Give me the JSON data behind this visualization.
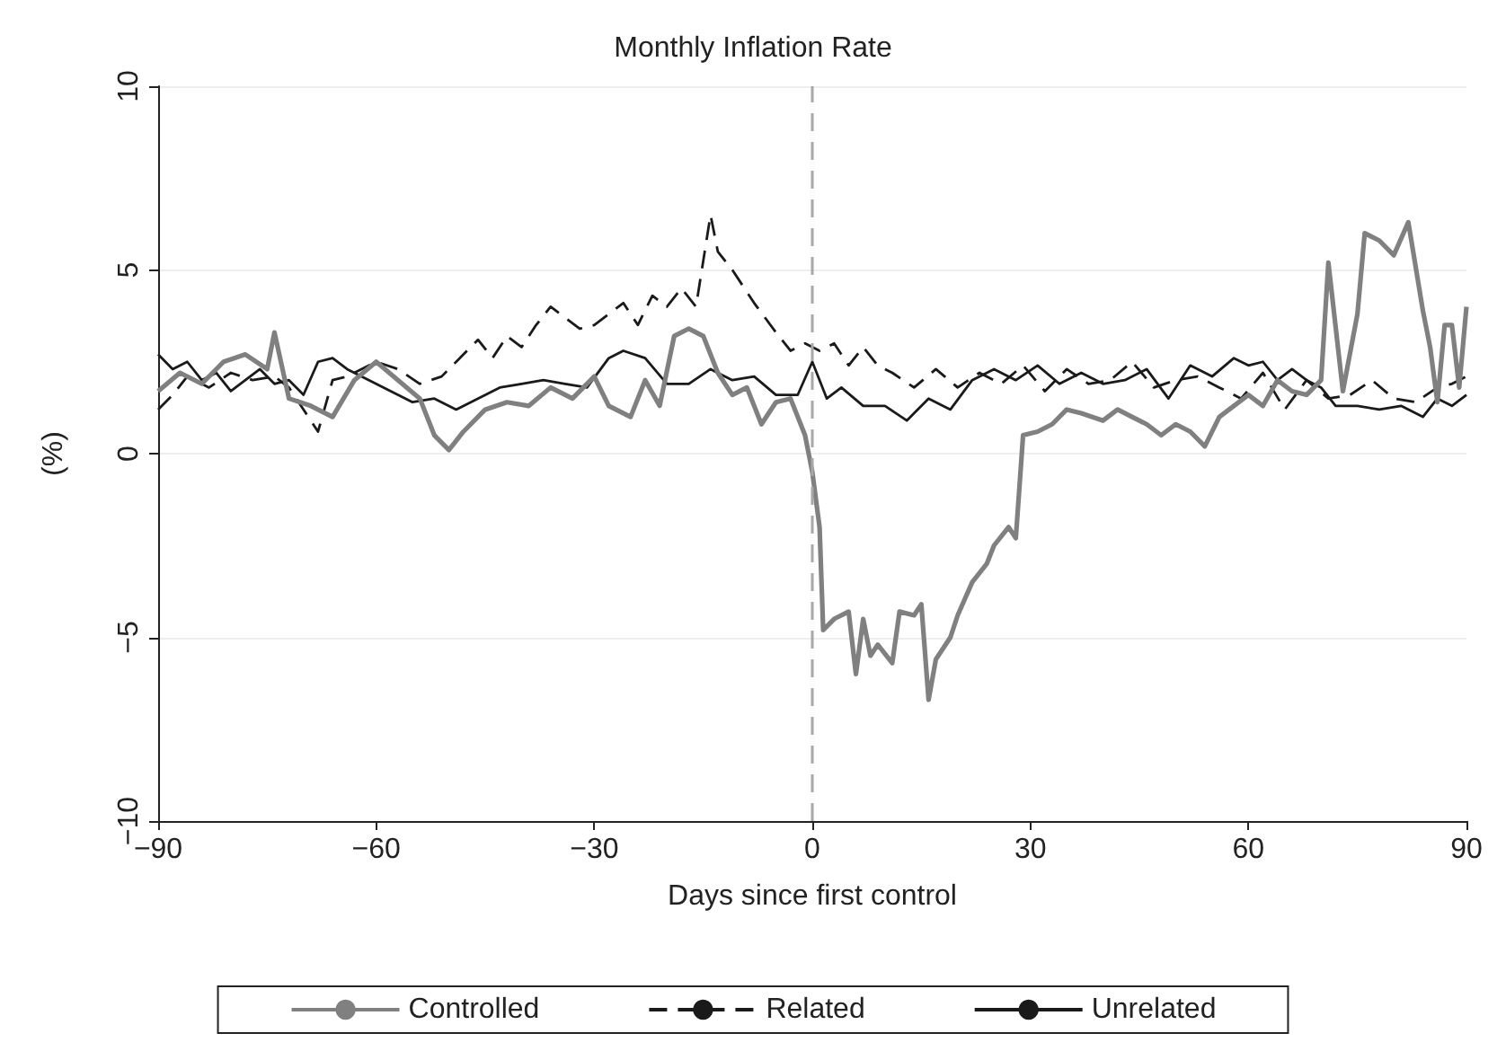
{
  "chart_data": {
    "type": "line",
    "title": "Monthly Inflation Rate",
    "xlabel": "Days since first control",
    "ylabel": "(%)",
    "xlim": [
      -90,
      90
    ],
    "xticks": [
      {
        "value": -90,
        "label": "−90"
      },
      {
        "value": -60,
        "label": "−60"
      },
      {
        "value": -30,
        "label": "−30"
      },
      0,
      30,
      60,
      90
    ],
    "ylim": [
      -10,
      10
    ],
    "yticks": [
      {
        "value": -10,
        "label": "−10"
      },
      {
        "value": -5,
        "label": "−5"
      },
      0,
      5,
      10
    ],
    "grid": "y",
    "legend": "bottom",
    "marker": "none",
    "ref_lines": [
      {
        "axis": "x",
        "value": 0,
        "color": "#a8a8a8",
        "line_style": "dashed"
      }
    ],
    "series": [
      {
        "name": "Controlled",
        "color": "#808080",
        "line_style": "solid",
        "x": [
          -90,
          -87,
          -84,
          -81,
          -78,
          -75,
          -74,
          -72,
          -69,
          -66,
          -63,
          -60,
          -57,
          -54,
          -52,
          -50,
          -48,
          -45,
          -42,
          -39,
          -36,
          -33,
          -30,
          -28,
          -25,
          -23,
          -21,
          -19,
          -17,
          -15,
          -13,
          -11,
          -9,
          -7,
          -5,
          -3,
          -1,
          0,
          1,
          1.5,
          3,
          5,
          6,
          7,
          8,
          9,
          11,
          12,
          14,
          15,
          16,
          17,
          19,
          20,
          22,
          24,
          25,
          27,
          28,
          29,
          31,
          33,
          35,
          37,
          40,
          42,
          44,
          46,
          48,
          50,
          52,
          54,
          56,
          58,
          60,
          62,
          64,
          66,
          68,
          70,
          71,
          73,
          75,
          76,
          78,
          80,
          82,
          84,
          85,
          86,
          87,
          88,
          89,
          90
        ],
        "values": [
          1.7,
          2.2,
          1.9,
          2.5,
          2.7,
          2.3,
          3.3,
          1.5,
          1.3,
          1.0,
          2.0,
          2.5,
          2.0,
          1.5,
          0.5,
          0.1,
          0.6,
          1.2,
          1.4,
          1.3,
          1.8,
          1.5,
          2.1,
          1.3,
          1.0,
          2.0,
          1.3,
          3.2,
          3.4,
          3.2,
          2.2,
          1.6,
          1.8,
          0.8,
          1.4,
          1.5,
          0.5,
          -0.5,
          -2.0,
          -4.8,
          -4.5,
          -4.3,
          -6.0,
          -4.5,
          -5.5,
          -5.2,
          -5.7,
          -4.3,
          -4.4,
          -4.1,
          -6.7,
          -5.6,
          -5.0,
          -4.4,
          -3.5,
          -3.0,
          -2.5,
          -2.0,
          -2.3,
          0.5,
          0.6,
          0.8,
          1.2,
          1.1,
          0.9,
          1.2,
          1.0,
          0.8,
          0.5,
          0.8,
          0.6,
          0.2,
          1.0,
          1.3,
          1.6,
          1.3,
          2.0,
          1.7,
          1.6,
          2.0,
          5.2,
          1.7,
          3.8,
          6.0,
          5.8,
          5.4,
          6.3,
          3.9,
          2.9,
          1.4,
          3.5,
          3.5,
          1.8,
          4.0
        ]
      },
      {
        "name": "Related",
        "color": "#1a1a1a",
        "line_style": "dashed",
        "x": [
          -90,
          -88,
          -86,
          -83,
          -80,
          -77,
          -74,
          -72,
          -70,
          -68,
          -66,
          -64,
          -60,
          -57,
          -54,
          -51,
          -48,
          -46,
          -44,
          -42,
          -40,
          -38,
          -36,
          -34,
          -32,
          -30,
          -28,
          -26,
          -24,
          -22,
          -20,
          -18,
          -16,
          -14,
          -13,
          -11,
          -8,
          -5,
          -3,
          -1,
          1,
          3,
          5,
          7,
          9,
          11,
          14,
          17,
          20,
          23,
          26,
          29,
          32,
          35,
          38,
          41,
          44,
          47,
          50,
          53,
          56,
          59,
          62,
          65,
          68,
          71,
          74,
          77,
          80,
          83,
          86,
          88,
          90
        ],
        "values": [
          1.2,
          1.6,
          2.1,
          1.8,
          2.2,
          2.0,
          2.1,
          1.8,
          1.2,
          0.6,
          2.0,
          2.1,
          2.5,
          2.3,
          1.9,
          2.1,
          2.7,
          3.1,
          2.6,
          3.2,
          2.9,
          3.5,
          4.0,
          3.7,
          3.4,
          3.5,
          3.8,
          4.1,
          3.5,
          4.3,
          4.0,
          4.5,
          4.0,
          6.5,
          5.5,
          5.0,
          4.1,
          3.3,
          2.8,
          3.0,
          2.8,
          3.0,
          2.4,
          2.9,
          2.4,
          2.2,
          1.8,
          2.3,
          1.8,
          2.2,
          1.9,
          2.4,
          1.7,
          2.3,
          1.9,
          2.0,
          2.5,
          1.8,
          2.0,
          2.1,
          1.8,
          1.5,
          2.2,
          1.2,
          2.0,
          1.5,
          1.6,
          2.0,
          1.5,
          1.4,
          1.8,
          1.9,
          2.1
        ]
      },
      {
        "name": "Unrelated",
        "color": "#1a1a1a",
        "line_style": "solid",
        "x": [
          -90,
          -88,
          -86,
          -84,
          -82,
          -80,
          -78,
          -76,
          -74,
          -72,
          -70,
          -68,
          -66,
          -64,
          -61,
          -58,
          -55,
          -52,
          -49,
          -46,
          -43,
          -40,
          -37,
          -34,
          -31,
          -28,
          -26,
          -23,
          -20,
          -17,
          -14,
          -11,
          -8,
          -5,
          -2,
          0,
          2,
          4,
          7,
          10,
          13,
          16,
          19,
          22,
          25,
          28,
          31,
          34,
          37,
          40,
          43,
          46,
          49,
          52,
          55,
          58,
          60,
          62,
          64,
          66,
          68,
          70,
          72,
          75,
          78,
          81,
          84,
          86,
          88,
          90
        ],
        "values": [
          2.7,
          2.3,
          2.5,
          2.0,
          2.2,
          1.7,
          2.0,
          2.3,
          1.9,
          2.0,
          1.6,
          2.5,
          2.6,
          2.3,
          2.0,
          1.7,
          1.4,
          1.5,
          1.2,
          1.5,
          1.8,
          1.9,
          2.0,
          1.9,
          1.8,
          2.6,
          2.8,
          2.6,
          1.9,
          1.9,
          2.3,
          2.0,
          2.1,
          1.6,
          1.6,
          2.5,
          1.5,
          1.8,
          1.3,
          1.3,
          0.9,
          1.5,
          1.2,
          2.0,
          2.3,
          2.0,
          2.4,
          1.9,
          2.2,
          1.9,
          2.0,
          2.3,
          1.5,
          2.4,
          2.1,
          2.6,
          2.4,
          2.5,
          2.0,
          2.3,
          2.0,
          1.8,
          1.3,
          1.3,
          1.2,
          1.3,
          1.0,
          1.5,
          1.3,
          1.6
        ]
      }
    ]
  }
}
